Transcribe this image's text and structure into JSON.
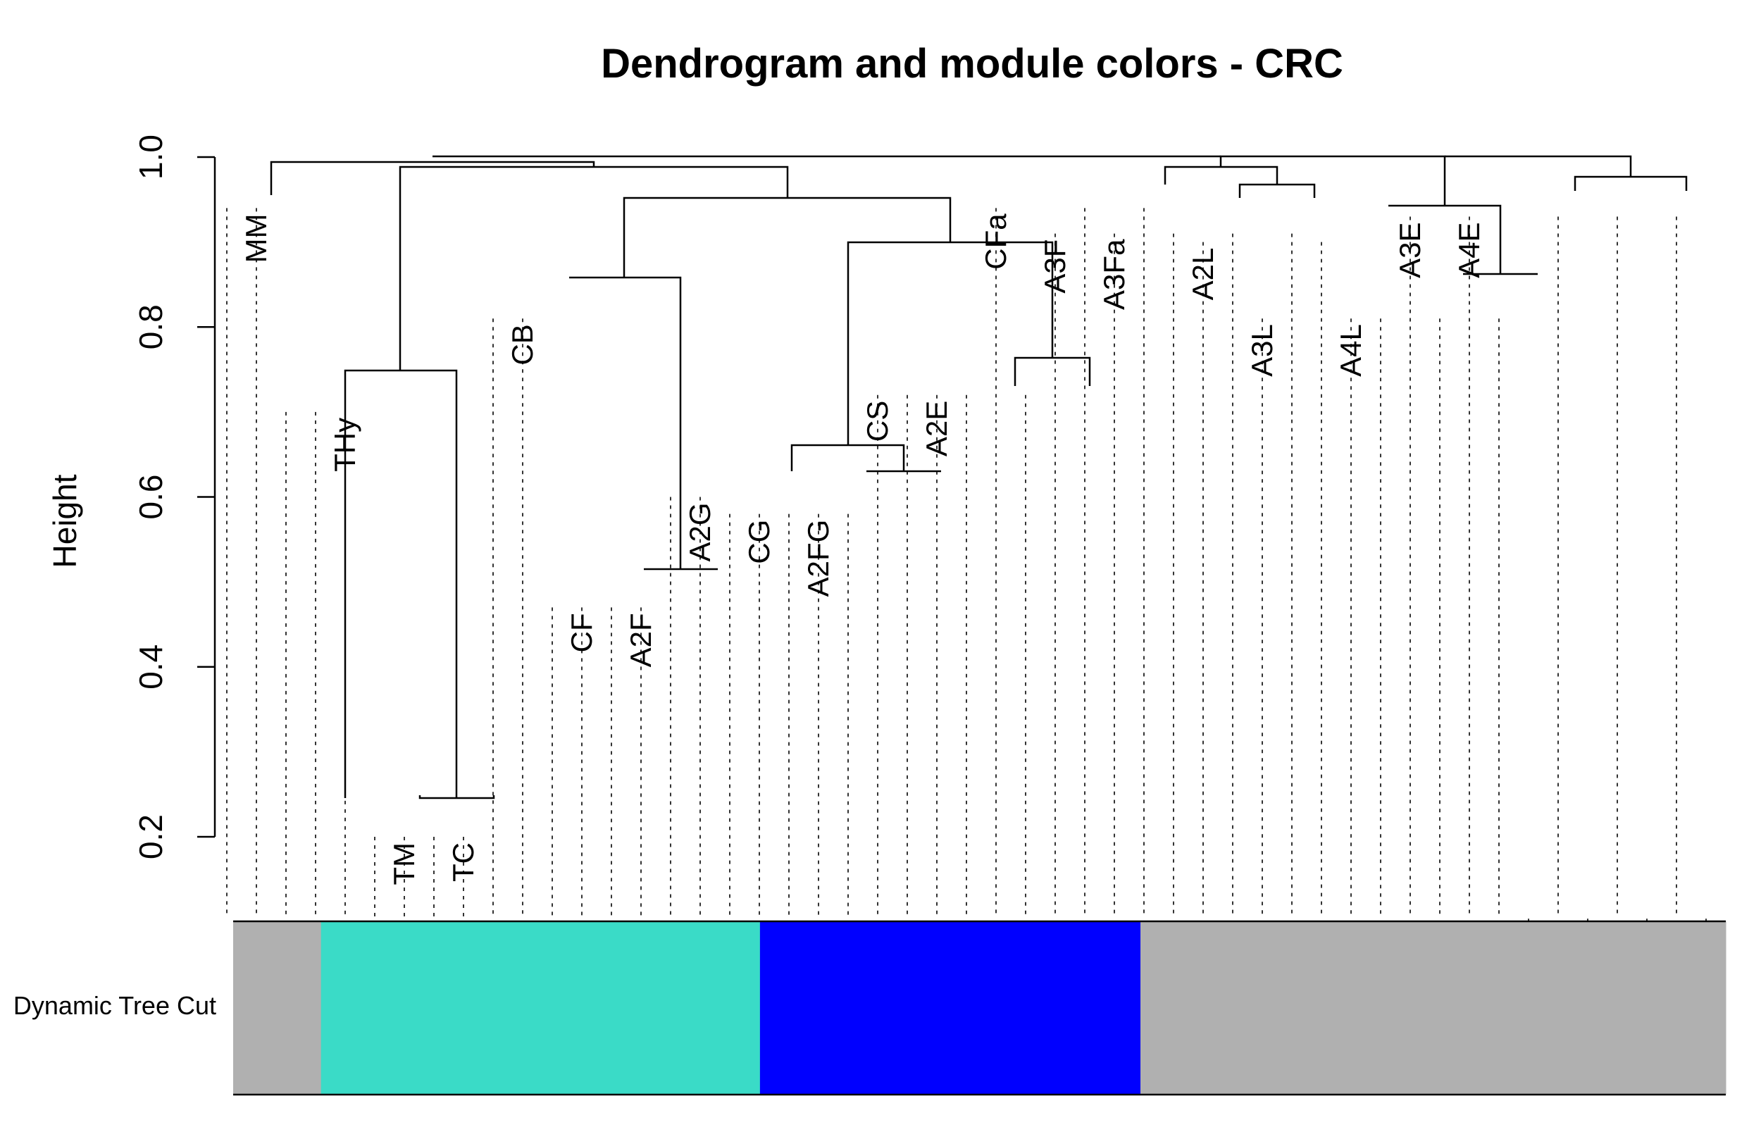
{
  "chart_data": {
    "type": "dendrogram",
    "title": "Dendrogram and module colors - CRC",
    "ylabel": "Height",
    "ylim": [
      0.2,
      1.0
    ],
    "yticks": [
      "0.2",
      "0.4",
      "0.6",
      "0.8",
      "1.0"
    ],
    "color_bar_label": "Dynamic Tree Cut",
    "module_colors": {
      "grey": "#B0B0B0",
      "turquoise": "#3ADBC7",
      "blue": "#0000FF"
    },
    "labeled_leaves": [
      {
        "name": "MM",
        "height": 0.94
      },
      {
        "name": "THy",
        "height": 0.7
      },
      {
        "name": "TM",
        "height": 0.2
      },
      {
        "name": "TC",
        "height": 0.2
      },
      {
        "name": "CB",
        "height": 0.81
      },
      {
        "name": "CF",
        "height": 0.47
      },
      {
        "name": "A2F",
        "height": 0.47
      },
      {
        "name": "A2G",
        "height": 0.6
      },
      {
        "name": "CG",
        "height": 0.58
      },
      {
        "name": "A2FG",
        "height": 0.58
      },
      {
        "name": "CS",
        "height": 0.72
      },
      {
        "name": "A2E",
        "height": 0.72
      },
      {
        "name": "CFa",
        "height": 0.94
      },
      {
        "name": "A3F",
        "height": 0.91
      },
      {
        "name": "A3Fa",
        "height": 0.91
      },
      {
        "name": "A2L",
        "height": 0.9
      },
      {
        "name": "A3L",
        "height": 0.81
      },
      {
        "name": "A4L",
        "height": 0.81
      },
      {
        "name": "A3E",
        "height": 0.93
      },
      {
        "name": "A4E",
        "height": 0.93
      }
    ],
    "modules": [
      {
        "color": "grey",
        "leaf_count": 3
      },
      {
        "color": "turquoise",
        "leaf_count": 15
      },
      {
        "color": "blue",
        "leaf_count": 13
      },
      {
        "color": "grey",
        "leaf_count": 20
      }
    ]
  }
}
